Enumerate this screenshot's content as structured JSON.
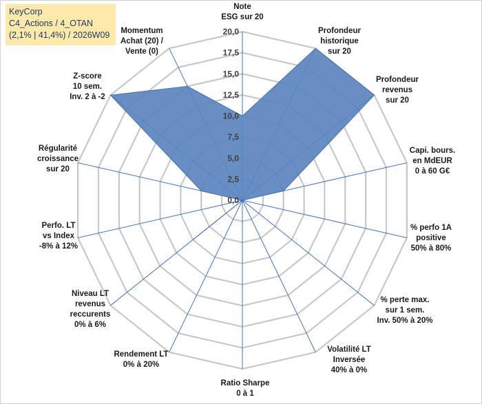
{
  "header": {
    "line1": "KeyCorp",
    "line2": "C4_Actions / 4_OTAN",
    "line3": "(2,1% | 41,4%) / 2026W09"
  },
  "chart_data": {
    "type": "radar",
    "categories": [
      [
        "Note",
        "ESG sur 20"
      ],
      [
        "Profondeur",
        "historique",
        "sur 20"
      ],
      [
        "Profondeur",
        "revenus",
        "sur 20"
      ],
      [
        "Capi. bours.",
        "en MdEUR",
        "0 à 60 G€"
      ],
      [
        "% perfo 1A",
        "positive",
        "50% à 80%"
      ],
      [
        "% perte max.",
        "sur 1 sem.",
        "Inv. 50% à 20%"
      ],
      [
        "Volatilité LT",
        "Inversée",
        "40% à 0%"
      ],
      [
        "Ratio Sharpe",
        "0 à 1"
      ],
      [
        "Rendement LT",
        "0% à 20%"
      ],
      [
        "Niveau LT",
        "revenus",
        "reccurents",
        "0% à 6%"
      ],
      [
        "Perfo. LT",
        "vs Index",
        "-8% à 12%"
      ],
      [
        "Régularité",
        "croissance",
        "sur 20"
      ],
      [
        "Z-score",
        "10 sem.",
        "Inv. 2 à -2"
      ],
      [
        "Momentum",
        "Achat (20) /",
        "Vente (0)"
      ]
    ],
    "values": [
      10,
      20,
      20,
      5,
      0,
      0,
      0,
      0,
      0,
      7.5,
      0,
      5,
      20,
      15
    ],
    "rmin": 0,
    "rmax": 20,
    "ticks": [
      "0,0",
      "2,5",
      "5,0",
      "7,5",
      "10,0",
      "12,5",
      "15,0",
      "17,5",
      "20,0"
    ],
    "colors": {
      "fill": "#5b84bf",
      "stroke": "#4a72b0",
      "spoke": "#4472c4",
      "grid": "#c8c8c8"
    }
  }
}
